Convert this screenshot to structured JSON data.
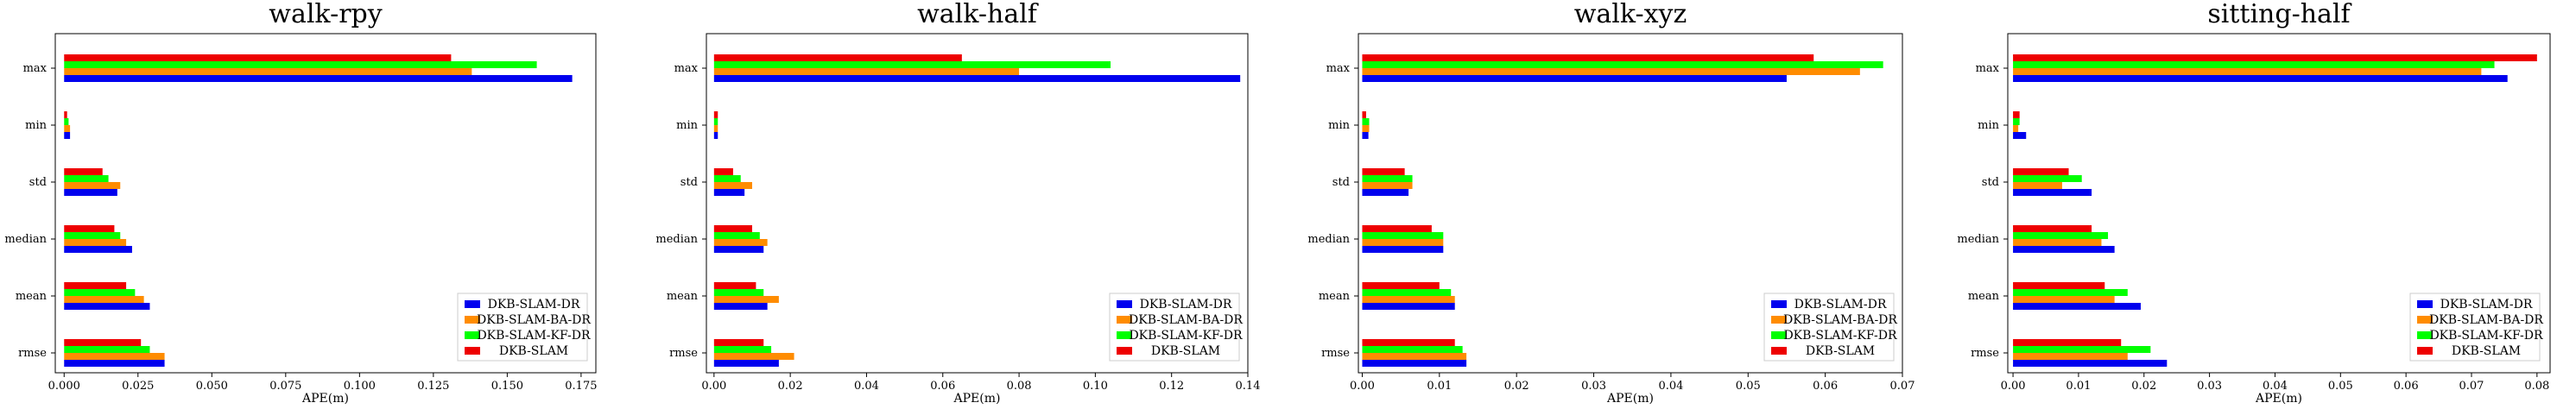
{
  "figure": {
    "series_names": [
      "DKB-SLAM-DR",
      "DKB-SLAM-BA-DR",
      "DKB-SLAM-KF-DR",
      "DKB-SLAM"
    ],
    "series_colors": [
      "#0000ee",
      "#ff8c00",
      "#00ff00",
      "#ee0000"
    ]
  },
  "chart_data": [
    {
      "type": "bar",
      "orientation": "horizontal",
      "title": "walk-rpy",
      "xlabel": "APE(m)",
      "categories": [
        "max",
        "min",
        "std",
        "median",
        "mean",
        "rmse"
      ],
      "xlim": [
        -0.003,
        0.18
      ],
      "xticks": [
        0.0,
        0.025,
        0.05,
        0.075,
        0.1,
        0.125,
        0.15,
        0.175
      ],
      "xtick_labels": [
        "0.000",
        "0.025",
        "0.050",
        "0.075",
        "0.100",
        "0.125",
        "0.150",
        "0.175"
      ],
      "legend_position": "lower-right",
      "series": [
        {
          "name": "DKB-SLAM-DR",
          "values": [
            0.172,
            0.002,
            0.018,
            0.023,
            0.029,
            0.034
          ]
        },
        {
          "name": "DKB-SLAM-BA-DR",
          "values": [
            0.138,
            0.002,
            0.019,
            0.021,
            0.027,
            0.034
          ]
        },
        {
          "name": "DKB-SLAM-KF-DR",
          "values": [
            0.16,
            0.0015,
            0.015,
            0.019,
            0.024,
            0.029
          ]
        },
        {
          "name": "DKB-SLAM",
          "values": [
            0.131,
            0.001,
            0.013,
            0.017,
            0.021,
            0.026
          ]
        }
      ]
    },
    {
      "type": "bar",
      "orientation": "horizontal",
      "title": "walk-half",
      "xlabel": "APE(m)",
      "categories": [
        "max",
        "min",
        "std",
        "median",
        "mean",
        "rmse"
      ],
      "xlim": [
        -0.002,
        0.14
      ],
      "xticks": [
        0.0,
        0.02,
        0.04,
        0.06,
        0.08,
        0.1,
        0.12,
        0.14
      ],
      "xtick_labels": [
        "0.00",
        "0.02",
        "0.04",
        "0.06",
        "0.08",
        "0.10",
        "0.12",
        "0.14"
      ],
      "legend_position": "lower-right",
      "series": [
        {
          "name": "DKB-SLAM-DR",
          "values": [
            0.138,
            0.001,
            0.008,
            0.013,
            0.014,
            0.017
          ]
        },
        {
          "name": "DKB-SLAM-BA-DR",
          "values": [
            0.08,
            0.001,
            0.01,
            0.014,
            0.017,
            0.021
          ]
        },
        {
          "name": "DKB-SLAM-KF-DR",
          "values": [
            0.104,
            0.001,
            0.007,
            0.012,
            0.013,
            0.015
          ]
        },
        {
          "name": "DKB-SLAM",
          "values": [
            0.065,
            0.001,
            0.005,
            0.01,
            0.011,
            0.013
          ]
        }
      ]
    },
    {
      "type": "bar",
      "orientation": "horizontal",
      "title": "walk-xyz",
      "xlabel": "APE(m)",
      "categories": [
        "max",
        "min",
        "std",
        "median",
        "mean",
        "rmse"
      ],
      "xlim": [
        -0.0005,
        0.07
      ],
      "xticks": [
        0.0,
        0.01,
        0.02,
        0.03,
        0.04,
        0.05,
        0.06,
        0.07
      ],
      "xtick_labels": [
        "0.00",
        "0.01",
        "0.02",
        "0.03",
        "0.04",
        "0.05",
        "0.06",
        "0.07"
      ],
      "legend_position": "lower-right",
      "series": [
        {
          "name": "DKB-SLAM-DR",
          "values": [
            0.055,
            0.0008,
            0.006,
            0.0105,
            0.012,
            0.0135
          ]
        },
        {
          "name": "DKB-SLAM-BA-DR",
          "values": [
            0.0645,
            0.0009,
            0.0065,
            0.0105,
            0.012,
            0.0135
          ]
        },
        {
          "name": "DKB-SLAM-KF-DR",
          "values": [
            0.0675,
            0.0009,
            0.0065,
            0.0105,
            0.0115,
            0.013
          ]
        },
        {
          "name": "DKB-SLAM",
          "values": [
            0.0585,
            0.0005,
            0.0055,
            0.009,
            0.01,
            0.012
          ]
        }
      ]
    },
    {
      "type": "bar",
      "orientation": "horizontal",
      "title": "sitting-half",
      "xlabel": "APE(m)",
      "categories": [
        "max",
        "min",
        "std",
        "median",
        "mean",
        "rmse"
      ],
      "xlim": [
        -0.0008,
        0.082
      ],
      "xticks": [
        0.0,
        0.01,
        0.02,
        0.03,
        0.04,
        0.05,
        0.06,
        0.07,
        0.08
      ],
      "xtick_labels": [
        "0.00",
        "0.01",
        "0.02",
        "0.03",
        "0.04",
        "0.05",
        "0.06",
        "0.07",
        "0.08"
      ],
      "legend_position": "lower-right",
      "series": [
        {
          "name": "DKB-SLAM-DR",
          "values": [
            0.0755,
            0.002,
            0.012,
            0.0155,
            0.0195,
            0.0235
          ]
        },
        {
          "name": "DKB-SLAM-BA-DR",
          "values": [
            0.0715,
            0.0008,
            0.0075,
            0.0135,
            0.0155,
            0.0175
          ]
        },
        {
          "name": "DKB-SLAM-KF-DR",
          "values": [
            0.0735,
            0.001,
            0.0105,
            0.0145,
            0.0175,
            0.021
          ]
        },
        {
          "name": "DKB-SLAM",
          "values": [
            0.08,
            0.001,
            0.0085,
            0.012,
            0.014,
            0.0165
          ]
        }
      ]
    }
  ]
}
